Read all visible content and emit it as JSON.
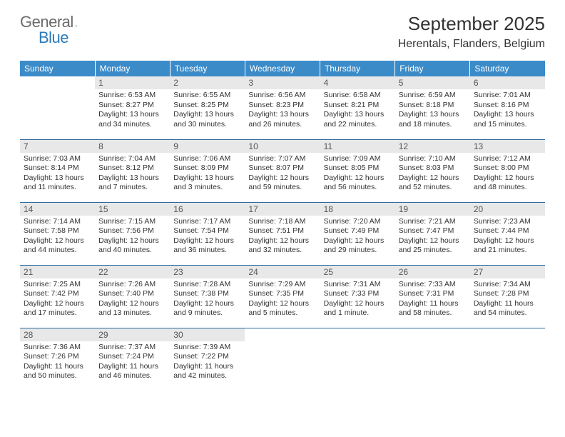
{
  "logo": {
    "general": "General",
    "blue": "Blue"
  },
  "title": "September 2025",
  "location": "Herentals, Flanders, Belgium",
  "header_bg": "#3b8bc9",
  "divider_color": "#2a6aa0",
  "daynum_bg": "#e8e8e8",
  "weekdays": [
    "Sunday",
    "Monday",
    "Tuesday",
    "Wednesday",
    "Thursday",
    "Friday",
    "Saturday"
  ],
  "weeks": [
    [
      null,
      {
        "n": "1",
        "sr": "6:53 AM",
        "ss": "8:27 PM",
        "dl": "13 hours and 34 minutes."
      },
      {
        "n": "2",
        "sr": "6:55 AM",
        "ss": "8:25 PM",
        "dl": "13 hours and 30 minutes."
      },
      {
        "n": "3",
        "sr": "6:56 AM",
        "ss": "8:23 PM",
        "dl": "13 hours and 26 minutes."
      },
      {
        "n": "4",
        "sr": "6:58 AM",
        "ss": "8:21 PM",
        "dl": "13 hours and 22 minutes."
      },
      {
        "n": "5",
        "sr": "6:59 AM",
        "ss": "8:18 PM",
        "dl": "13 hours and 18 minutes."
      },
      {
        "n": "6",
        "sr": "7:01 AM",
        "ss": "8:16 PM",
        "dl": "13 hours and 15 minutes."
      }
    ],
    [
      {
        "n": "7",
        "sr": "7:03 AM",
        "ss": "8:14 PM",
        "dl": "13 hours and 11 minutes."
      },
      {
        "n": "8",
        "sr": "7:04 AM",
        "ss": "8:12 PM",
        "dl": "13 hours and 7 minutes."
      },
      {
        "n": "9",
        "sr": "7:06 AM",
        "ss": "8:09 PM",
        "dl": "13 hours and 3 minutes."
      },
      {
        "n": "10",
        "sr": "7:07 AM",
        "ss": "8:07 PM",
        "dl": "12 hours and 59 minutes."
      },
      {
        "n": "11",
        "sr": "7:09 AM",
        "ss": "8:05 PM",
        "dl": "12 hours and 56 minutes."
      },
      {
        "n": "12",
        "sr": "7:10 AM",
        "ss": "8:03 PM",
        "dl": "12 hours and 52 minutes."
      },
      {
        "n": "13",
        "sr": "7:12 AM",
        "ss": "8:00 PM",
        "dl": "12 hours and 48 minutes."
      }
    ],
    [
      {
        "n": "14",
        "sr": "7:14 AM",
        "ss": "7:58 PM",
        "dl": "12 hours and 44 minutes."
      },
      {
        "n": "15",
        "sr": "7:15 AM",
        "ss": "7:56 PM",
        "dl": "12 hours and 40 minutes."
      },
      {
        "n": "16",
        "sr": "7:17 AM",
        "ss": "7:54 PM",
        "dl": "12 hours and 36 minutes."
      },
      {
        "n": "17",
        "sr": "7:18 AM",
        "ss": "7:51 PM",
        "dl": "12 hours and 32 minutes."
      },
      {
        "n": "18",
        "sr": "7:20 AM",
        "ss": "7:49 PM",
        "dl": "12 hours and 29 minutes."
      },
      {
        "n": "19",
        "sr": "7:21 AM",
        "ss": "7:47 PM",
        "dl": "12 hours and 25 minutes."
      },
      {
        "n": "20",
        "sr": "7:23 AM",
        "ss": "7:44 PM",
        "dl": "12 hours and 21 minutes."
      }
    ],
    [
      {
        "n": "21",
        "sr": "7:25 AM",
        "ss": "7:42 PM",
        "dl": "12 hours and 17 minutes."
      },
      {
        "n": "22",
        "sr": "7:26 AM",
        "ss": "7:40 PM",
        "dl": "12 hours and 13 minutes."
      },
      {
        "n": "23",
        "sr": "7:28 AM",
        "ss": "7:38 PM",
        "dl": "12 hours and 9 minutes."
      },
      {
        "n": "24",
        "sr": "7:29 AM",
        "ss": "7:35 PM",
        "dl": "12 hours and 5 minutes."
      },
      {
        "n": "25",
        "sr": "7:31 AM",
        "ss": "7:33 PM",
        "dl": "12 hours and 1 minute."
      },
      {
        "n": "26",
        "sr": "7:33 AM",
        "ss": "7:31 PM",
        "dl": "11 hours and 58 minutes."
      },
      {
        "n": "27",
        "sr": "7:34 AM",
        "ss": "7:28 PM",
        "dl": "11 hours and 54 minutes."
      }
    ],
    [
      {
        "n": "28",
        "sr": "7:36 AM",
        "ss": "7:26 PM",
        "dl": "11 hours and 50 minutes."
      },
      {
        "n": "29",
        "sr": "7:37 AM",
        "ss": "7:24 PM",
        "dl": "11 hours and 46 minutes."
      },
      {
        "n": "30",
        "sr": "7:39 AM",
        "ss": "7:22 PM",
        "dl": "11 hours and 42 minutes."
      },
      null,
      null,
      null,
      null
    ]
  ],
  "labels": {
    "sunrise": "Sunrise:",
    "sunset": "Sunset:",
    "daylight": "Daylight:"
  }
}
